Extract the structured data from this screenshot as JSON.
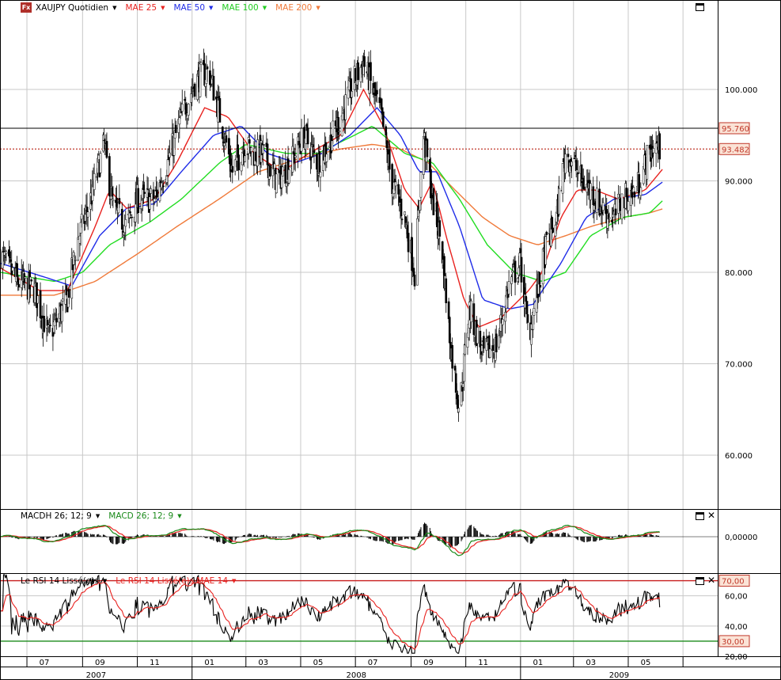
{
  "main_panel": {
    "title": "XAUJPY Quotidien",
    "legend": [
      {
        "label": "MAE 25",
        "color": "#e8221f"
      },
      {
        "label": "MAE 50",
        "color": "#1f2ce8"
      },
      {
        "label": "MAE 100",
        "color": "#22dd22"
      },
      {
        "label": "MAE 200",
        "color": "#f07a3a"
      }
    ],
    "price_axis": [
      "100.000",
      "90.000",
      "80.000",
      "70.000",
      "60.000"
    ],
    "last_high_label": "95.760",
    "last_price_label": "93.482"
  },
  "macd_panel": {
    "legend": [
      {
        "label": "MACDH 26; 12; 9",
        "color": "#000000"
      },
      {
        "label": "MACD 26; 12; 9",
        "color": "#1a8a1a"
      }
    ],
    "axis": [
      "0,00000"
    ]
  },
  "rsi_panel": {
    "legend": [
      {
        "label": "Le RSI 14 Lissé(e)s",
        "color": "#000000"
      },
      {
        "label": "Le RSI 14 Lissé(e)s MAE 14",
        "color": "#e8221f"
      }
    ],
    "axis": [
      "60,00",
      "40,00",
      "20,00"
    ],
    "upper_label": "70,00",
    "lower_label": "30,00"
  },
  "time_axis": {
    "months": [
      "07",
      "09",
      "11",
      "01",
      "03",
      "05",
      "07",
      "09",
      "11",
      "01",
      "03",
      "05"
    ],
    "years": [
      "2007",
      "2008",
      "2009"
    ]
  },
  "colors": {
    "candle_up": "#ffffff",
    "candle_down": "#000000",
    "grid": "#c8c8c8",
    "mae25": "#e8221f",
    "mae50": "#1f2ce8",
    "mae100": "#22dd22",
    "mae200": "#f07a3a",
    "label_bg": "#fbe3d6",
    "label_border": "#c0392b"
  },
  "chart_data": [
    {
      "type": "candlestick",
      "title": "XAUJPY Quotidien",
      "x_months": [
        "2007-06",
        "2007-07",
        "2007-08",
        "2007-09",
        "2007-10",
        "2007-11",
        "2007-12",
        "2008-01",
        "2008-02",
        "2008-03",
        "2008-04",
        "2008-05",
        "2008-06",
        "2008-07",
        "2008-08",
        "2008-09",
        "2008-10",
        "2008-11",
        "2008-12",
        "2009-01",
        "2009-02",
        "2009-03",
        "2009-04",
        "2009-05",
        "2009-06"
      ],
      "close_path": [
        [
          "2007-06",
          82
        ],
        [
          "2007-06-20",
          79
        ],
        [
          "2007-07-10",
          78
        ],
        [
          "2007-07-25",
          73
        ],
        [
          "2007-08-15",
          77
        ],
        [
          "2007-08-25",
          83
        ],
        [
          "2007-09-10",
          88
        ],
        [
          "2007-09-25",
          94
        ],
        [
          "2007-10-05",
          87
        ],
        [
          "2007-10-20",
          85
        ],
        [
          "2007-11-01",
          88
        ],
        [
          "2007-11-20",
          88
        ],
        [
          "2007-12-05",
          92
        ],
        [
          "2007-12-20",
          97
        ],
        [
          "2008-01-05",
          101
        ],
        [
          "2008-01-20",
          102
        ],
        [
          "2008-01-30",
          98
        ],
        [
          "2008-02-15",
          91
        ],
        [
          "2008-02-28",
          94
        ],
        [
          "2008-03-10",
          93
        ],
        [
          "2008-03-20",
          93
        ],
        [
          "2008-04-05",
          90
        ],
        [
          "2008-04-20",
          92
        ],
        [
          "2008-05-05",
          95
        ],
        [
          "2008-05-20",
          92
        ],
        [
          "2008-06-01",
          94
        ],
        [
          "2008-06-15",
          97
        ],
        [
          "2008-06-30",
          101
        ],
        [
          "2008-07-10",
          103
        ],
        [
          "2008-07-20",
          100
        ],
        [
          "2008-07-30",
          97
        ],
        [
          "2008-08-10",
          90
        ],
        [
          "2008-08-25",
          86
        ],
        [
          "2008-09-05",
          80
        ],
        [
          "2008-09-15",
          95
        ],
        [
          "2008-09-25",
          88
        ],
        [
          "2008-10-05",
          83
        ],
        [
          "2008-10-15",
          72
        ],
        [
          "2008-10-25",
          65
        ],
        [
          "2008-11-05",
          76
        ],
        [
          "2008-11-20",
          71
        ],
        [
          "2008-12-05",
          72
        ],
        [
          "2008-12-20",
          79
        ],
        [
          "2009-01-01",
          81
        ],
        [
          "2009-01-10",
          73
        ],
        [
          "2009-01-20",
          78
        ],
        [
          "2009-01-30",
          83
        ],
        [
          "2009-02-10",
          86
        ],
        [
          "2009-02-20",
          93
        ],
        [
          "2009-03-01",
          92
        ],
        [
          "2009-03-10",
          90
        ],
        [
          "2009-03-20",
          89
        ],
        [
          "2009-04-01",
          87
        ],
        [
          "2009-04-15",
          86
        ],
        [
          "2009-04-25",
          88
        ],
        [
          "2009-05-10",
          89
        ],
        [
          "2009-05-20",
          92
        ],
        [
          "2009-05-30",
          94
        ],
        [
          "2009-06-05",
          93.5
        ]
      ],
      "mae": {
        "25": [
          [
            "2007-06",
            80.5
          ],
          [
            "2007-07-15",
            78
          ],
          [
            "2007-08-15",
            78
          ],
          [
            "2007-09-15",
            85
          ],
          [
            "2007-10-01",
            89
          ],
          [
            "2007-10-20",
            87
          ],
          [
            "2007-11-20",
            88
          ],
          [
            "2007-12-15",
            92
          ],
          [
            "2008-01-15",
            98
          ],
          [
            "2008-02-10",
            97
          ],
          [
            "2008-03-10",
            93
          ],
          [
            "2008-04-10",
            91
          ],
          [
            "2008-05-10",
            93
          ],
          [
            "2008-06-15",
            95
          ],
          [
            "2008-07-10",
            100
          ],
          [
            "2008-08-01",
            96
          ],
          [
            "2008-08-25",
            89
          ],
          [
            "2008-09-10",
            87
          ],
          [
            "2008-09-25",
            90
          ],
          [
            "2008-10-10",
            84
          ],
          [
            "2008-10-30",
            77
          ],
          [
            "2008-11-15",
            74
          ],
          [
            "2008-12-10",
            75
          ],
          [
            "2009-01-10",
            78
          ],
          [
            "2009-01-25",
            80
          ],
          [
            "2009-02-15",
            86
          ],
          [
            "2009-03-05",
            89
          ],
          [
            "2009-03-25",
            89
          ],
          [
            "2009-04-20",
            88
          ],
          [
            "2009-05-20",
            89
          ],
          [
            "2009-06-10",
            91.5
          ]
        ],
        "50": [
          [
            "2007-06",
            81
          ],
          [
            "2007-07-20",
            79.5
          ],
          [
            "2007-08-20",
            78.5
          ],
          [
            "2007-09-20",
            84
          ],
          [
            "2007-10-20",
            87
          ],
          [
            "2007-11-20",
            87.5
          ],
          [
            "2007-12-20",
            91
          ],
          [
            "2008-01-25",
            95
          ],
          [
            "2008-02-25",
            96
          ],
          [
            "2008-03-25",
            93
          ],
          [
            "2008-04-25",
            92
          ],
          [
            "2008-05-25",
            93
          ],
          [
            "2008-06-25",
            95
          ],
          [
            "2008-07-25",
            98
          ],
          [
            "2008-08-20",
            95
          ],
          [
            "2008-09-10",
            91
          ],
          [
            "2008-09-30",
            91
          ],
          [
            "2008-10-25",
            85
          ],
          [
            "2008-11-20",
            77
          ],
          [
            "2008-12-20",
            76
          ],
          [
            "2009-01-15",
            76.5
          ],
          [
            "2009-02-15",
            81
          ],
          [
            "2009-03-15",
            86
          ],
          [
            "2009-04-15",
            88
          ],
          [
            "2009-05-20",
            88.5
          ],
          [
            "2009-06-10",
            90
          ]
        ],
        "100": [
          [
            "2007-06",
            80
          ],
          [
            "2007-08-01",
            79
          ],
          [
            "2007-09-01",
            80
          ],
          [
            "2007-10-01",
            83
          ],
          [
            "2007-11-15",
            85.5
          ],
          [
            "2007-12-20",
            88
          ],
          [
            "2008-02-01",
            92
          ],
          [
            "2008-03-01",
            94
          ],
          [
            "2008-04-15",
            93
          ],
          [
            "2008-05-20",
            93
          ],
          [
            "2008-06-30",
            95
          ],
          [
            "2008-07-20",
            96
          ],
          [
            "2008-08-25",
            93
          ],
          [
            "2008-09-25",
            92
          ],
          [
            "2008-10-25",
            88
          ],
          [
            "2008-11-25",
            83
          ],
          [
            "2008-12-25",
            80
          ],
          [
            "2009-01-25",
            79
          ],
          [
            "2009-02-20",
            80
          ],
          [
            "2009-03-20",
            84
          ],
          [
            "2009-04-25",
            86
          ],
          [
            "2009-05-25",
            86.5
          ],
          [
            "2009-06-10",
            88
          ]
        ],
        "200": [
          [
            "2007-06",
            77.5
          ],
          [
            "2007-08-01",
            77.5
          ],
          [
            "2007-09-15",
            79
          ],
          [
            "2007-11-01",
            82
          ],
          [
            "2007-12-15",
            85
          ],
          [
            "2008-01-31",
            88
          ],
          [
            "2008-03-15",
            91
          ],
          [
            "2008-05-01",
            92.5
          ],
          [
            "2008-06-15",
            93.5
          ],
          [
            "2008-07-20",
            94
          ],
          [
            "2008-08-20",
            93.5
          ],
          [
            "2008-09-20",
            92
          ],
          [
            "2008-10-20",
            89
          ],
          [
            "2008-11-20",
            86
          ],
          [
            "2008-12-20",
            84
          ],
          [
            "2009-01-20",
            83
          ],
          [
            "2009-02-20",
            84
          ],
          [
            "2009-03-20",
            85
          ],
          [
            "2009-04-25",
            86
          ],
          [
            "2009-05-25",
            86.5
          ],
          [
            "2009-06-10",
            87
          ]
        ]
      },
      "ylim": [
        53,
        110
      ],
      "hlines": {
        "recent_high": 95.76,
        "last_price": 93.482
      }
    },
    {
      "type": "line",
      "title": "MACD 26; 12; 9",
      "series": [
        {
          "name": "MACDH 26; 12; 9"
        },
        {
          "name": "MACD 26; 12; 9"
        }
      ],
      "zero_line": 0
    },
    {
      "type": "line",
      "title": "Le RSI 14 Lissé(e)s",
      "series": [
        {
          "name": "Le RSI 14 Lissé(e)s"
        },
        {
          "name": "Le RSI 14 Lissé(e)s MAE 14"
        }
      ],
      "ylim": [
        20,
        75
      ],
      "levels": [
        70,
        30
      ]
    }
  ]
}
